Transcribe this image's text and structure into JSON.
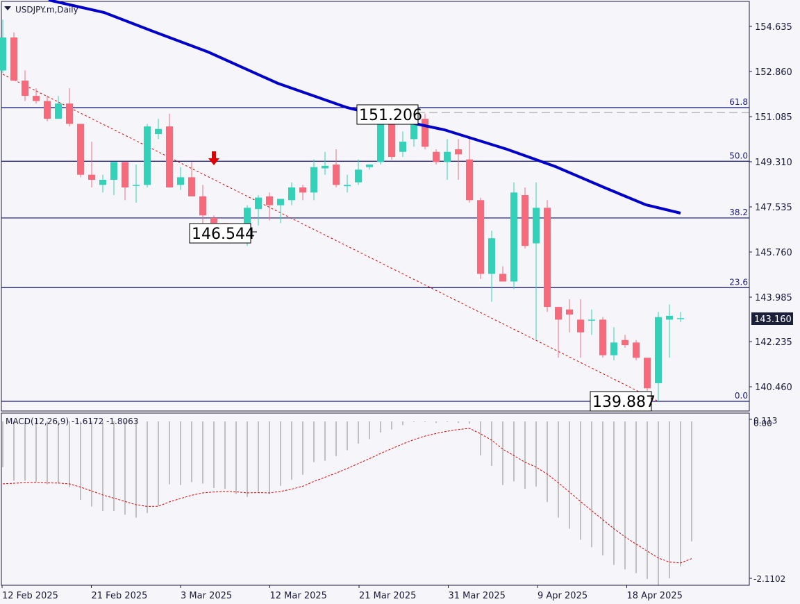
{
  "window": {
    "symbol_label": "USDJPY.m,Daily",
    "dropdown_icon": "triangle-down-icon"
  },
  "colors": {
    "background": "#f5f5fa",
    "frame": "#1a1a3a",
    "bull": "#33d1b8",
    "bear": "#f76a7c",
    "ma": "#0000c8",
    "fib_line": "#10107a",
    "trendline": "#e00000",
    "macd_hist": "#c0c0c0",
    "macd_signal": "#e00000",
    "price_tag_bg": "#1a1f3a",
    "price_tag_fg": "#ffffff",
    "arrow": "#e00000"
  },
  "price_axis": {
    "ticks": [
      "154.635",
      "152.860",
      "151.085",
      "149.310",
      "147.535",
      "145.760",
      "143.985",
      "142.235",
      "140.460"
    ],
    "current_price": "143.160"
  },
  "macd_axis": {
    "ticks": [
      "0.113",
      "0.00",
      "-2.1102"
    ]
  },
  "time_axis": {
    "ticks": [
      "12 Feb 2025",
      "21 Feb 2025",
      "3 Mar 2025",
      "12 Mar 2025",
      "21 Mar 2025",
      "31 Mar 2025",
      "9 Apr 2025",
      "18 Apr 2025"
    ]
  },
  "fibonacci": {
    "levels": [
      {
        "label": "61.8",
        "price": 151.44
      },
      {
        "label": "50.0",
        "price": 149.33
      },
      {
        "label": "38.2",
        "price": 147.1
      },
      {
        "label": "23.6",
        "price": 144.36
      },
      {
        "label": "0.0",
        "price": 139.887
      }
    ]
  },
  "annotations": {
    "high_callout": "151.206",
    "low_callout_1": "146.544",
    "low_callout_2": "139.887"
  },
  "macd": {
    "label": "MACD(12,26,9) -1.6172 -1.8063"
  },
  "chart_data": {
    "type": "candlestick",
    "title": "USDJPY.m,Daily",
    "xlabel": "",
    "ylabel": "",
    "ylim": [
      139.6,
      155.5
    ],
    "grid": false,
    "candles": [
      {
        "o": 152.9,
        "h": 154.9,
        "l": 152.8,
        "c": 154.2
      },
      {
        "o": 154.2,
        "h": 154.4,
        "l": 152.7,
        "c": 152.5
      },
      {
        "o": 152.5,
        "h": 152.9,
        "l": 151.7,
        "c": 151.9
      },
      {
        "o": 151.9,
        "h": 152.2,
        "l": 151.6,
        "c": 151.7
      },
      {
        "o": 151.7,
        "h": 151.9,
        "l": 150.9,
        "c": 151.0
      },
      {
        "o": 151.0,
        "h": 151.9,
        "l": 151.0,
        "c": 151.6
      },
      {
        "o": 151.6,
        "h": 152.2,
        "l": 150.7,
        "c": 150.8
      },
      {
        "o": 150.8,
        "h": 150.8,
        "l": 148.7,
        "c": 148.8
      },
      {
        "o": 148.8,
        "h": 150.1,
        "l": 148.3,
        "c": 148.6
      },
      {
        "o": 148.4,
        "h": 148.8,
        "l": 148.1,
        "c": 148.6
      },
      {
        "o": 148.6,
        "h": 149.3,
        "l": 148.0,
        "c": 149.3
      },
      {
        "o": 149.3,
        "h": 149.3,
        "l": 147.8,
        "c": 148.3
      },
      {
        "o": 148.4,
        "h": 149.2,
        "l": 147.7,
        "c": 148.4
      },
      {
        "o": 148.4,
        "h": 150.8,
        "l": 148.3,
        "c": 150.7
      },
      {
        "o": 150.4,
        "h": 151.0,
        "l": 150.2,
        "c": 150.6
      },
      {
        "o": 150.7,
        "h": 151.2,
        "l": 148.4,
        "c": 148.3
      },
      {
        "o": 148.4,
        "h": 149.1,
        "l": 148.2,
        "c": 148.7
      },
      {
        "o": 148.7,
        "h": 149.3,
        "l": 148.0,
        "c": 147.95
      },
      {
        "o": 147.95,
        "h": 148.4,
        "l": 146.6,
        "c": 147.2
      },
      {
        "o": 147.1,
        "h": 147.2,
        "l": 146.4,
        "c": 146.9
      },
      {
        "o": 146.9,
        "h": 146.9,
        "l": 146.7,
        "c": 146.6
      },
      {
        "o": 146.6,
        "h": 146.8,
        "l": 146.3,
        "c": 146.2
      },
      {
        "o": 146.4,
        "h": 147.6,
        "l": 146.0,
        "c": 147.5
      },
      {
        "o": 147.45,
        "h": 148.0,
        "l": 146.8,
        "c": 147.9
      },
      {
        "o": 147.95,
        "h": 148.1,
        "l": 147.0,
        "c": 147.6
      },
      {
        "o": 147.6,
        "h": 147.6,
        "l": 146.9,
        "c": 147.85
      },
      {
        "o": 147.8,
        "h": 148.5,
        "l": 147.6,
        "c": 148.3
      },
      {
        "o": 148.3,
        "h": 148.4,
        "l": 147.8,
        "c": 148.1
      },
      {
        "o": 148.1,
        "h": 149.4,
        "l": 147.8,
        "c": 149.1
      },
      {
        "o": 149.05,
        "h": 149.7,
        "l": 148.8,
        "c": 149.15
      },
      {
        "o": 149.2,
        "h": 149.8,
        "l": 148.3,
        "c": 148.4
      },
      {
        "o": 148.35,
        "h": 148.8,
        "l": 148.1,
        "c": 148.4
      },
      {
        "o": 148.5,
        "h": 149.4,
        "l": 148.4,
        "c": 149.0
      },
      {
        "o": 149.1,
        "h": 149.2,
        "l": 149.0,
        "c": 149.2
      },
      {
        "o": 149.3,
        "h": 151.1,
        "l": 149.2,
        "c": 150.8
      },
      {
        "o": 150.8,
        "h": 151.0,
        "l": 149.4,
        "c": 149.5
      },
      {
        "o": 149.7,
        "h": 150.5,
        "l": 149.5,
        "c": 150.1
      },
      {
        "o": 150.2,
        "h": 151.3,
        "l": 149.9,
        "c": 151.1
      },
      {
        "o": 151.0,
        "h": 151.206,
        "l": 149.8,
        "c": 149.9
      },
      {
        "o": 149.7,
        "h": 149.8,
        "l": 149.2,
        "c": 149.3
      },
      {
        "o": 149.3,
        "h": 150.2,
        "l": 148.6,
        "c": 149.7
      },
      {
        "o": 149.8,
        "h": 150.2,
        "l": 148.6,
        "c": 149.6
      },
      {
        "o": 149.4,
        "h": 150.3,
        "l": 147.7,
        "c": 147.8
      },
      {
        "o": 147.8,
        "h": 147.9,
        "l": 144.7,
        "c": 144.9
      },
      {
        "o": 144.9,
        "h": 146.6,
        "l": 143.8,
        "c": 146.3
      },
      {
        "o": 144.9,
        "h": 145.2,
        "l": 144.6,
        "c": 144.6
      },
      {
        "o": 144.6,
        "h": 148.5,
        "l": 144.3,
        "c": 148.1
      },
      {
        "o": 148.0,
        "h": 148.3,
        "l": 145.9,
        "c": 146.0
      },
      {
        "o": 146.1,
        "h": 148.5,
        "l": 142.3,
        "c": 147.5
      },
      {
        "o": 147.5,
        "h": 147.8,
        "l": 143.4,
        "c": 143.6
      },
      {
        "o": 143.6,
        "h": 143.4,
        "l": 141.6,
        "c": 143.1
      },
      {
        "o": 143.5,
        "h": 143.9,
        "l": 142.6,
        "c": 143.3
      },
      {
        "o": 143.1,
        "h": 143.9,
        "l": 141.6,
        "c": 142.6
      },
      {
        "o": 143.1,
        "h": 143.5,
        "l": 142.5,
        "c": 143.1
      },
      {
        "o": 143.1,
        "h": 143.2,
        "l": 141.6,
        "c": 141.7
      },
      {
        "o": 141.7,
        "h": 142.8,
        "l": 141.5,
        "c": 142.2
      },
      {
        "o": 142.3,
        "h": 142.5,
        "l": 142.0,
        "c": 142.1
      },
      {
        "o": 142.2,
        "h": 142.3,
        "l": 141.5,
        "c": 141.6
      },
      {
        "o": 141.6,
        "h": 141.6,
        "l": 140.3,
        "c": 140.4
      },
      {
        "o": 140.6,
        "h": 143.4,
        "l": 139.887,
        "c": 143.2
      },
      {
        "o": 143.1,
        "h": 143.7,
        "l": 141.6,
        "c": 143.25
      },
      {
        "o": 143.15,
        "h": 143.4,
        "l": 143.0,
        "c": 143.16
      }
    ],
    "moving_average": {
      "name": "MA",
      "points": [
        [
          70,
          0
        ],
        [
          150,
          18
        ],
        [
          220,
          45
        ],
        [
          300,
          75
        ],
        [
          400,
          120
        ],
        [
          500,
          155
        ],
        [
          560,
          170
        ],
        [
          640,
          187
        ],
        [
          730,
          215
        ],
        [
          800,
          240
        ],
        [
          870,
          270
        ],
        [
          930,
          295
        ],
        [
          980,
          307
        ]
      ]
    },
    "macd": {
      "histogram": [
        -0.62,
        -0.8,
        -0.8,
        -0.82,
        -0.85,
        -0.84,
        -0.89,
        -1.06,
        -1.15,
        -1.21,
        -1.21,
        -1.26,
        -1.3,
        -1.24,
        -1.14,
        -0.85,
        -0.86,
        -0.82,
        -0.84,
        -0.9,
        -0.91,
        -0.98,
        -1.02,
        -0.95,
        -0.98,
        -0.87,
        -0.79,
        -0.72,
        -0.55,
        -0.53,
        -0.47,
        -0.39,
        -0.3,
        -0.24,
        -0.15,
        -0.11,
        -0.05,
        -0.01,
        -0.01,
        -0.02,
        -0.01,
        -0.02,
        -0.03,
        -0.46,
        -0.6,
        -0.86,
        -0.81,
        -0.91,
        -0.88,
        -1.09,
        -1.3,
        -1.45,
        -1.6,
        -1.7,
        -1.81,
        -1.94,
        -2.0,
        -2.05,
        -2.13,
        -2.22,
        -2.12,
        -1.96,
        -1.62
      ],
      "signal_range": [
        -0.95,
        -1.81
      ],
      "current": {
        "macd": -1.6172,
        "signal": -1.8063
      },
      "ylim": [
        -2.1102,
        0.113
      ]
    }
  }
}
